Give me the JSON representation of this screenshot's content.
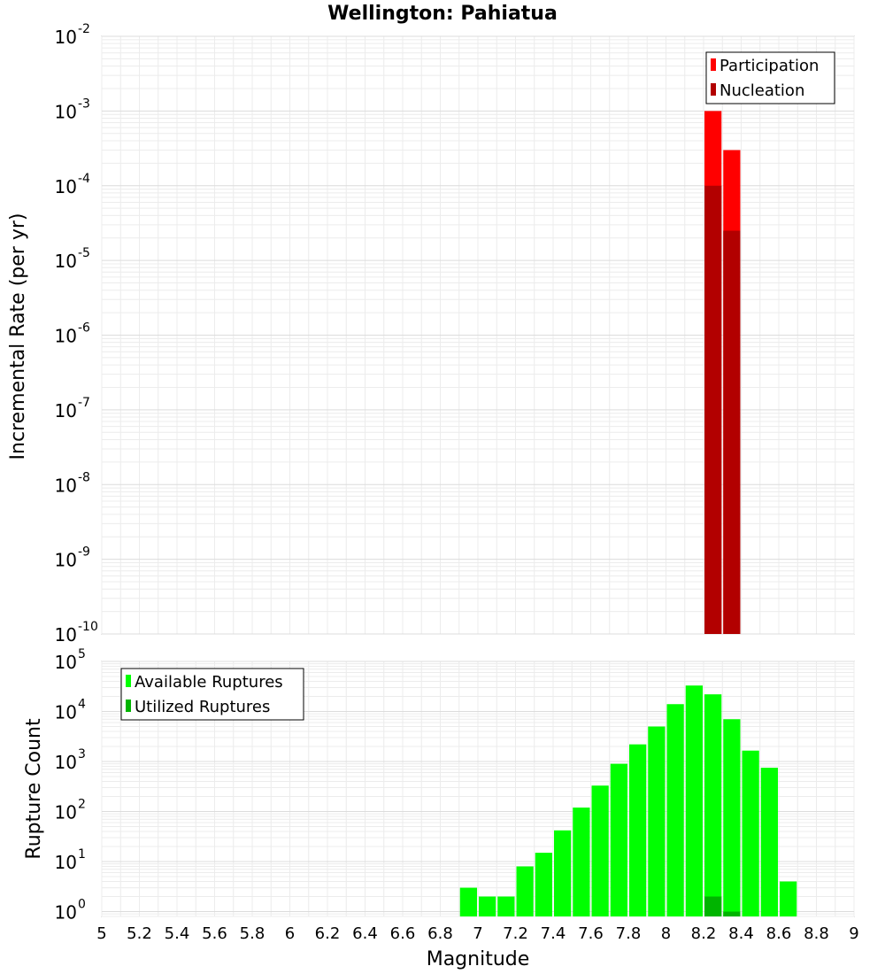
{
  "chart_data": [
    {
      "type": "bar",
      "title": "Wellington: Pahiatua",
      "xlabel": "",
      "ylabel": "Incremental Rate (per yr)",
      "yscale": "log",
      "ylim": [
        1e-10,
        0.01
      ],
      "xlim": [
        5,
        9
      ],
      "y_ticks": [
        {
          "base": "10",
          "exp": "-10"
        },
        {
          "base": "10",
          "exp": "-9"
        },
        {
          "base": "10",
          "exp": "-8"
        },
        {
          "base": "10",
          "exp": "-7"
        },
        {
          "base": "10",
          "exp": "-6"
        },
        {
          "base": "10",
          "exp": "-5"
        },
        {
          "base": "10",
          "exp": "-4"
        },
        {
          "base": "10",
          "exp": "-3"
        },
        {
          "base": "10",
          "exp": "-2"
        }
      ],
      "grid": true,
      "legend_position": "top-right",
      "bin_width": 0.1,
      "series": [
        {
          "name": "Participation",
          "color": "#ff0000",
          "x": [
            8.25,
            8.35
          ],
          "values": [
            0.001,
            0.0003
          ]
        },
        {
          "name": "Nucleation",
          "color": "#b20000",
          "x": [
            8.25,
            8.35
          ],
          "values": [
            0.0001,
            2.5e-05
          ]
        }
      ]
    },
    {
      "type": "bar",
      "title": "",
      "xlabel": "Magnitude",
      "ylabel": "Rupture Count",
      "yscale": "log",
      "ylim": [
        0.8,
        100000
      ],
      "xlim": [
        5,
        9
      ],
      "y_ticks": [
        {
          "base": "10",
          "exp": "0"
        },
        {
          "base": "10",
          "exp": "1"
        },
        {
          "base": "10",
          "exp": "2"
        },
        {
          "base": "10",
          "exp": "3"
        },
        {
          "base": "10",
          "exp": "4"
        },
        {
          "base": "10",
          "exp": "5"
        }
      ],
      "x_ticks": [
        "5",
        "5.2",
        "5.4",
        "5.6",
        "5.8",
        "6",
        "6.2",
        "6.4",
        "6.6",
        "6.8",
        "7",
        "7.2",
        "7.4",
        "7.6",
        "7.8",
        "8",
        "8.2",
        "8.4",
        "8.6",
        "8.8",
        "9"
      ],
      "grid": true,
      "legend_position": "top-left",
      "bin_width": 0.1,
      "series": [
        {
          "name": "Available Ruptures",
          "color": "#00ff00",
          "x": [
            6.95,
            7.05,
            7.15,
            7.25,
            7.35,
            7.45,
            7.55,
            7.65,
            7.75,
            7.85,
            7.95,
            8.05,
            8.15,
            8.25,
            8.35,
            8.45,
            8.55,
            8.65
          ],
          "values": [
            3,
            2,
            2,
            8,
            15,
            42,
            120,
            330,
            900,
            2200,
            5000,
            14000,
            33000,
            22000,
            7000,
            1650,
            750,
            4
          ]
        },
        {
          "name": "Utilized Ruptures",
          "color": "#00b400",
          "x": [
            8.25,
            8.35
          ],
          "values": [
            2,
            1
          ]
        }
      ]
    }
  ]
}
